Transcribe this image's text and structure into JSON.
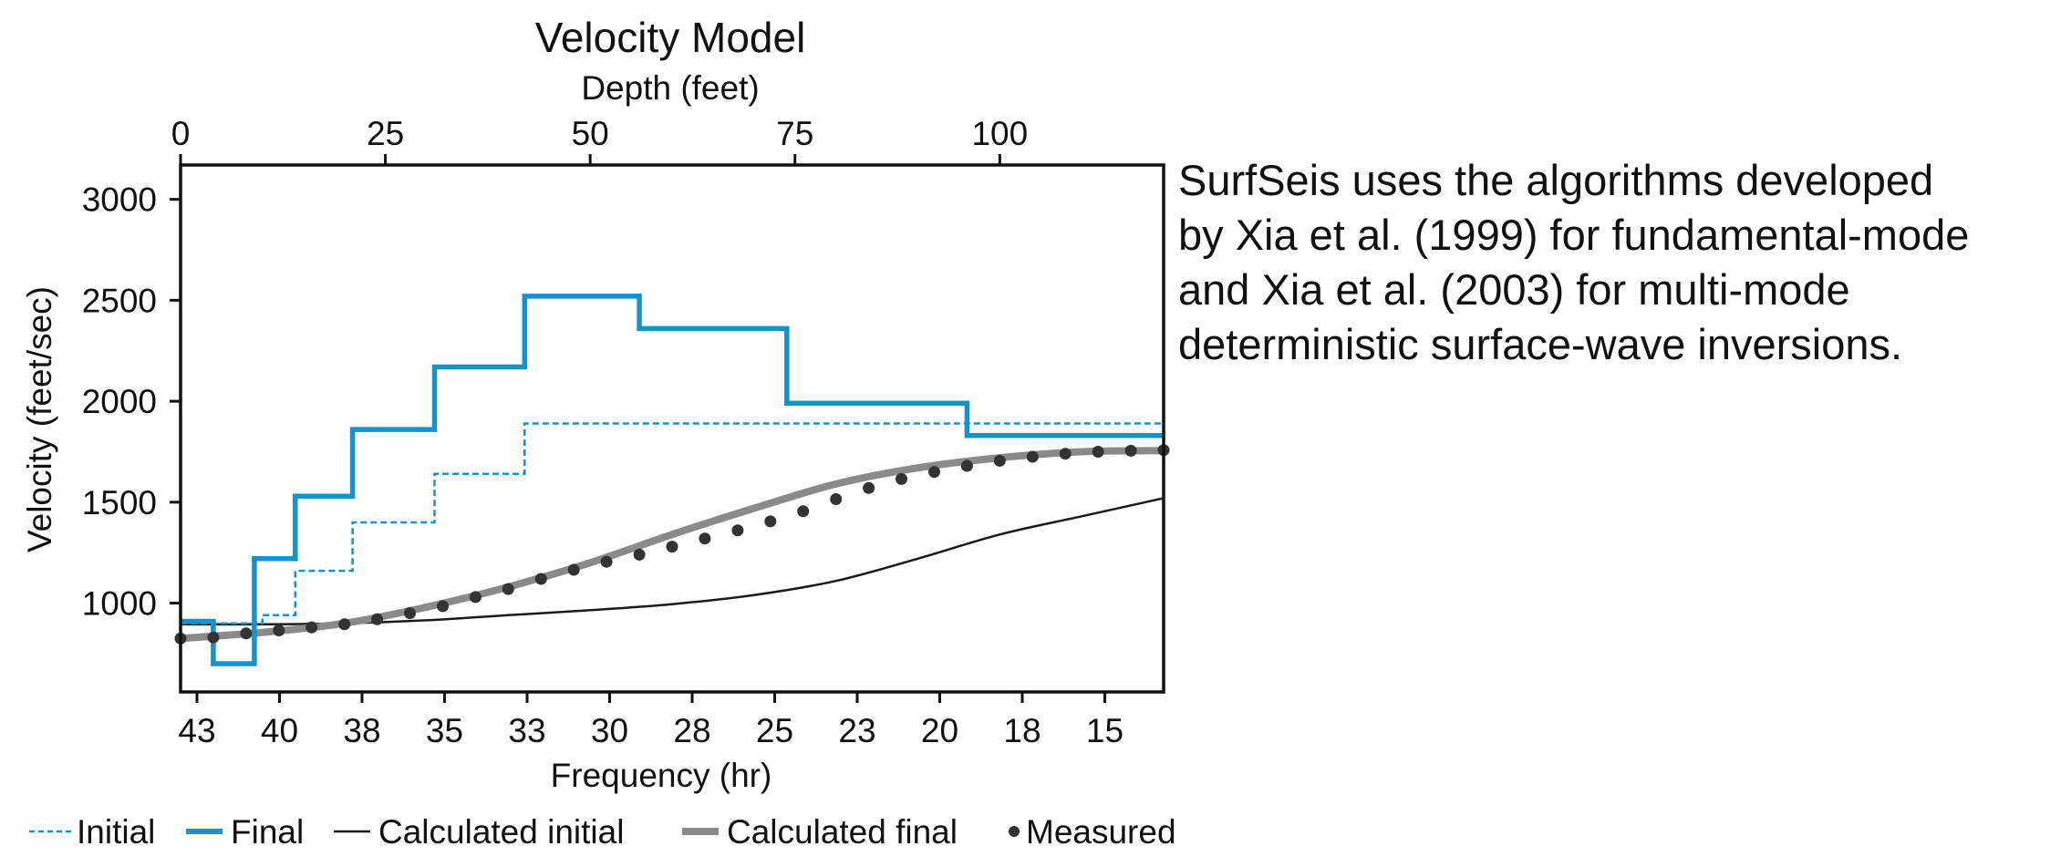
{
  "chart_data": {
    "type": "line",
    "title": "Velocity Model",
    "top_axis_label": "Depth (feet)",
    "top_axis_ticks": [
      "0",
      "25",
      "50",
      "75",
      "100"
    ],
    "top_axis_values": [
      0,
      25,
      50,
      75,
      100
    ],
    "top_xlim": [
      0,
      120
    ],
    "xlabel": "Frequency (hr)",
    "bottom_axis_ticks": [
      "43",
      "40",
      "38",
      "35",
      "33",
      "30",
      "28",
      "25",
      "23",
      "20",
      "18",
      "15"
    ],
    "ylabel": "Velocity (feet/sec)",
    "y_ticks": [
      "1000",
      "1500",
      "2000",
      "2500",
      "3000"
    ],
    "y_tick_values": [
      1000,
      1500,
      2000,
      2500,
      3000
    ],
    "ylim": [
      560,
      3170
    ],
    "legend_position": "bottom",
    "colors": {
      "initial": "#1592cc",
      "final": "#1592cc",
      "calc_initial": "#1a1a1a",
      "calc_final": "#8a8a8a",
      "measured": "#333333"
    },
    "series": [
      {
        "name": "Initial",
        "style": "dashed",
        "depth": [
          0,
          4,
          4,
          10,
          10,
          14,
          14,
          21,
          21,
          31,
          31,
          42,
          42,
          120
        ],
        "velocity": [
          900,
          900,
          900,
          900,
          940,
          940,
          1160,
          1160,
          1400,
          1400,
          1640,
          1640,
          1890,
          1890
        ]
      },
      {
        "name": "Final",
        "style": "solid-thick",
        "depth": [
          0,
          4,
          4,
          9,
          9,
          14,
          14,
          21,
          21,
          31,
          31,
          42,
          42,
          56,
          56,
          74,
          74,
          96,
          96,
          120
        ],
        "velocity": [
          910,
          910,
          700,
          700,
          1220,
          1220,
          1530,
          1530,
          1860,
          1860,
          2170,
          2170,
          2520,
          2520,
          2360,
          2360,
          1990,
          1990,
          1830,
          1830
        ]
      },
      {
        "name": "Calculated initial",
        "style": "solid-thin",
        "depth": [
          0,
          10,
          20,
          30,
          40,
          50,
          60,
          70,
          80,
          90,
          100,
          110,
          120
        ],
        "velocity": [
          895,
          895,
          900,
          915,
          940,
          965,
          995,
          1040,
          1110,
          1220,
          1340,
          1430,
          1520
        ]
      },
      {
        "name": "Calculated final",
        "style": "solid-thick-gray",
        "depth": [
          0,
          10,
          20,
          30,
          40,
          50,
          60,
          70,
          80,
          90,
          100,
          110,
          120
        ],
        "velocity": [
          825,
          855,
          900,
          980,
          1080,
          1200,
          1340,
          1470,
          1590,
          1670,
          1720,
          1750,
          1755
        ]
      },
      {
        "name": "Measured",
        "style": "dots",
        "depth": [
          0,
          4,
          8,
          12,
          16,
          20,
          24,
          28,
          32,
          36,
          40,
          44,
          48,
          52,
          56,
          60,
          64,
          68,
          72,
          76,
          80,
          84,
          88,
          92,
          96,
          100,
          104,
          108,
          112,
          116,
          120
        ],
        "velocity": [
          825,
          830,
          850,
          865,
          880,
          895,
          920,
          950,
          985,
          1030,
          1070,
          1120,
          1165,
          1205,
          1240,
          1280,
          1320,
          1360,
          1405,
          1455,
          1515,
          1570,
          1615,
          1650,
          1680,
          1705,
          1725,
          1740,
          1750,
          1755,
          1758
        ]
      }
    ]
  },
  "side_text": {
    "lines": [
      "SurfSeis uses the algorithms developed",
      "by Xia et al. (1999) for fundamental-mode",
      "and Xia et al. (2003) for multi-mode",
      "deterministic surface-wave inversions."
    ]
  }
}
